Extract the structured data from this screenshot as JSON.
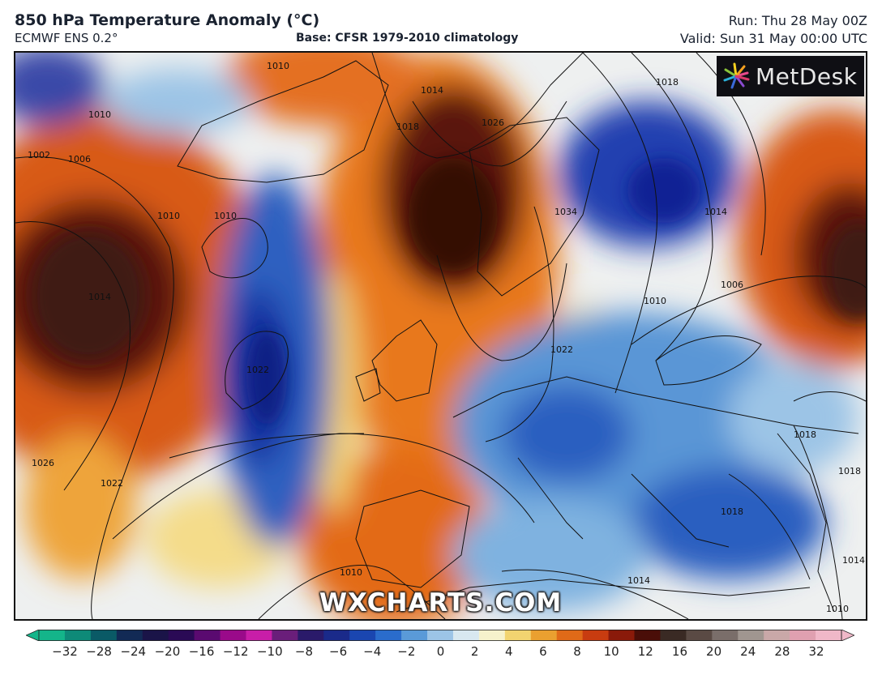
{
  "header": {
    "title": "850 hPa Temperature Anomaly (°C)",
    "subtitle": "ECMWF ENS 0.2°",
    "base": "Base: CFSR 1979-2010 climatology",
    "run": "Run: Thu 28 May 00Z",
    "valid": "Valid: Sun 31 May 00:00 UTC"
  },
  "logo": {
    "text": "MetDesk",
    "icon": "metdesk-pinwheel-icon"
  },
  "watermark": "WXCHARTS.COM",
  "isobars": {
    "labels": [
      "1010",
      "1010",
      "1014",
      "1018",
      "1026",
      "1018",
      "1002",
      "1006",
      "1010",
      "1010",
      "1014",
      "1022",
      "1026",
      "1022",
      "1034",
      "1022",
      "1010",
      "1014",
      "1006",
      "1018",
      "1018",
      "1014",
      "1010",
      "1014",
      "1010",
      "1018"
    ]
  },
  "colorbar": {
    "ticks": [
      "−32",
      "−28",
      "−24",
      "−20",
      "−16",
      "−12",
      "−10",
      "−8",
      "−6",
      "−4",
      "−2",
      "0",
      "2",
      "4",
      "6",
      "8",
      "10",
      "12",
      "16",
      "20",
      "24",
      "28",
      "32"
    ],
    "colors": [
      "#14b58a",
      "#0e8a78",
      "#0a5a66",
      "#122a55",
      "#1a1448",
      "#2a0a55",
      "#5a0a70",
      "#9a0a8a",
      "#c81ea8",
      "#6a1e7a",
      "#2a1a6a",
      "#1a2a8a",
      "#1a46b0",
      "#2a6ccc",
      "#5a9ad8",
      "#9cc4e6",
      "#d8e8f0",
      "#f6f2cc",
      "#f2d470",
      "#eaa030",
      "#e06a18",
      "#c83c10",
      "#8a1a0a",
      "#4a0e08",
      "#3a2a24",
      "#5a4a44",
      "#7a6e6a",
      "#a09690",
      "#c9a8a8",
      "#e0a0b0",
      "#f0b8c8"
    ]
  }
}
